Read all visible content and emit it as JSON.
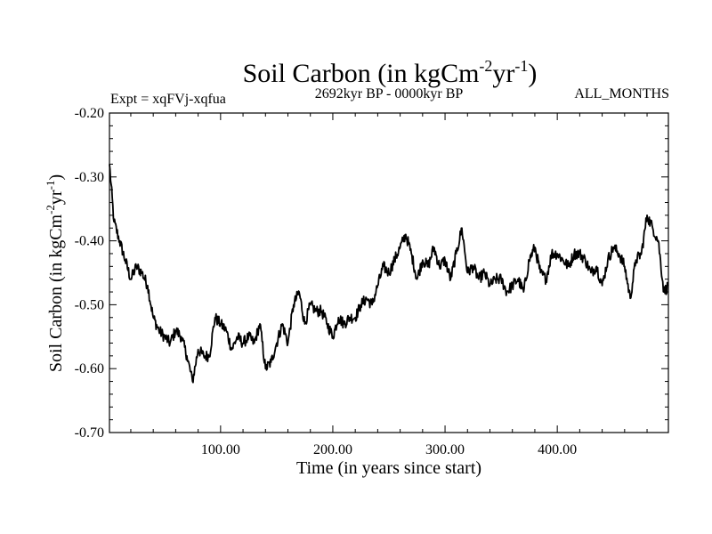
{
  "chart_data": {
    "type": "line",
    "title": "Soil Carbon (in kgCm",
    "title_sup1": "-2",
    "title_mid": "yr",
    "title_sup2": "-1",
    "title_end": ")",
    "subtitle_left": "Expt = xqFVj-xqfua",
    "subtitle_center": "2692kyr BP - 0000kyr BP",
    "subtitle_right": "ALL_MONTHS",
    "xlabel": "Time (in years since start)",
    "ylabel": "Soil Carbon (in kgCm",
    "ylabel_sup1": "-2",
    "ylabel_mid": "yr",
    "ylabel_sup2": "-1",
    "ylabel_end": ")",
    "xlim": [
      1,
      499
    ],
    "ylim": [
      -0.7,
      -0.2
    ],
    "xticks": [
      100,
      200,
      300,
      400
    ],
    "xtick_labels": [
      "100.00",
      "200.00",
      "300.00",
      "400.00"
    ],
    "yticks": [
      -0.2,
      -0.3,
      -0.4,
      -0.5,
      -0.6,
      -0.7
    ],
    "ytick_labels": [
      "-0.20",
      "-0.30",
      "-0.40",
      "-0.50",
      "-0.60",
      "-0.70"
    ],
    "series": [
      {
        "name": "Soil Carbon",
        "x": [
          1,
          5,
          10,
          15,
          20,
          25,
          30,
          35,
          40,
          45,
          50,
          55,
          60,
          65,
          70,
          75,
          80,
          85,
          90,
          95,
          100,
          105,
          110,
          115,
          120,
          125,
          130,
          135,
          140,
          145,
          150,
          155,
          160,
          165,
          170,
          175,
          180,
          185,
          190,
          195,
          200,
          205,
          210,
          215,
          220,
          225,
          230,
          235,
          240,
          245,
          250,
          255,
          260,
          265,
          270,
          275,
          280,
          285,
          290,
          295,
          300,
          305,
          310,
          315,
          320,
          325,
          330,
          335,
          340,
          345,
          350,
          355,
          360,
          365,
          370,
          375,
          380,
          385,
          390,
          395,
          400,
          405,
          410,
          415,
          420,
          425,
          430,
          435,
          440,
          445,
          450,
          455,
          460,
          465,
          470,
          475,
          480,
          485,
          490,
          495,
          499
        ],
        "values": [
          -0.28,
          -0.37,
          -0.4,
          -0.43,
          -0.46,
          -0.44,
          -0.45,
          -0.47,
          -0.52,
          -0.54,
          -0.55,
          -0.56,
          -0.54,
          -0.55,
          -0.58,
          -0.62,
          -0.57,
          -0.58,
          -0.58,
          -0.52,
          -0.53,
          -0.54,
          -0.57,
          -0.55,
          -0.56,
          -0.55,
          -0.56,
          -0.53,
          -0.6,
          -0.59,
          -0.56,
          -0.53,
          -0.56,
          -0.5,
          -0.48,
          -0.53,
          -0.5,
          -0.51,
          -0.51,
          -0.53,
          -0.55,
          -0.52,
          -0.53,
          -0.52,
          -0.52,
          -0.5,
          -0.49,
          -0.5,
          -0.47,
          -0.44,
          -0.45,
          -0.43,
          -0.41,
          -0.39,
          -0.42,
          -0.46,
          -0.43,
          -0.44,
          -0.41,
          -0.44,
          -0.43,
          -0.46,
          -0.42,
          -0.38,
          -0.45,
          -0.44,
          -0.46,
          -0.45,
          -0.47,
          -0.46,
          -0.46,
          -0.48,
          -0.47,
          -0.46,
          -0.48,
          -0.43,
          -0.41,
          -0.45,
          -0.46,
          -0.42,
          -0.42,
          -0.43,
          -0.44,
          -0.42,
          -0.42,
          -0.43,
          -0.45,
          -0.44,
          -0.47,
          -0.43,
          -0.41,
          -0.42,
          -0.44,
          -0.49,
          -0.43,
          -0.42,
          -0.36,
          -0.38,
          -0.4,
          -0.48,
          -0.47
        ]
      }
    ]
  }
}
